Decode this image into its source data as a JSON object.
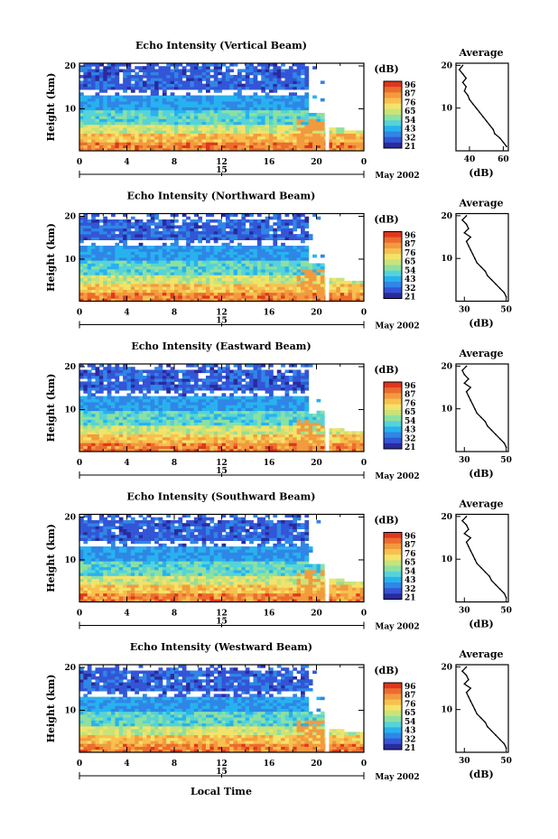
{
  "figure": {
    "xlabel": "Local Time",
    "date_label": "May 2002",
    "date_tick": "15",
    "colorbar_unit": "(dB)",
    "colorbar_ticks": [
      "96",
      "87",
      "76",
      "65",
      "54",
      "43",
      "32",
      "21"
    ],
    "avg_title": "Average",
    "avg_xlabel": "(dB)",
    "ylabel": "Height (km)",
    "colors": [
      "#2a2a9e",
      "#3355d6",
      "#2f86e6",
      "#27b2ef",
      "#55d3d8",
      "#8de0a0",
      "#c8e37a",
      "#f2e36a",
      "#f8c04e",
      "#f29a3e",
      "#ec6c2e",
      "#e0361e"
    ]
  },
  "chart_data": [
    {
      "type": "heatmap",
      "title": "Echo Intensity (Vertical Beam)",
      "xticks": [
        "0",
        "4",
        "8",
        "12",
        "16",
        "20",
        "0"
      ],
      "yticks": [
        "20",
        "10"
      ],
      "profile": {
        "type": "line",
        "title": "Average",
        "xticks": [
          "40",
          "60"
        ],
        "yticks": [
          "20",
          "10"
        ],
        "height_km": [
          1,
          2,
          3,
          4,
          5,
          6,
          7,
          8,
          9,
          10,
          11,
          12,
          13,
          14,
          15,
          16,
          17,
          18,
          19,
          20
        ],
        "db": [
          62,
          60,
          58,
          55,
          54,
          52,
          50,
          48,
          46,
          44,
          42,
          40,
          39,
          37,
          38,
          36,
          38,
          36,
          34,
          36
        ]
      }
    },
    {
      "type": "heatmap",
      "title": "Echo Intensity (Northward Beam)",
      "xticks": [
        "0",
        "4",
        "8",
        "12",
        "16",
        "20",
        "0"
      ],
      "yticks": [
        "20",
        "10"
      ],
      "profile": {
        "type": "line",
        "title": "Average",
        "xticks": [
          "30",
          "50"
        ],
        "yticks": [
          "20",
          "10"
        ],
        "height_km": [
          1,
          2,
          3,
          4,
          5,
          6,
          7,
          8,
          9,
          10,
          11,
          12,
          13,
          14,
          15,
          16,
          17,
          18,
          19,
          20
        ],
        "db": [
          50,
          49,
          47,
          45,
          43,
          41,
          40,
          38,
          36,
          35,
          34,
          33,
          32,
          31,
          33,
          30,
          32,
          31,
          29,
          31
        ]
      }
    },
    {
      "type": "heatmap",
      "title": "Echo Intensity (Eastward Beam)",
      "xticks": [
        "0",
        "4",
        "8",
        "12",
        "16",
        "20",
        "0"
      ],
      "yticks": [
        "20",
        "10"
      ],
      "profile": {
        "type": "line",
        "title": "Average",
        "xticks": [
          "30",
          "50"
        ],
        "yticks": [
          "20",
          "10"
        ],
        "height_km": [
          1,
          2,
          3,
          4,
          5,
          6,
          7,
          8,
          9,
          10,
          11,
          12,
          13,
          14,
          15,
          16,
          17,
          18,
          19,
          20
        ],
        "db": [
          50,
          49,
          47,
          45,
          43,
          41,
          40,
          38,
          36,
          35,
          34,
          33,
          32,
          31,
          33,
          30,
          32,
          30,
          29,
          31
        ]
      }
    },
    {
      "type": "heatmap",
      "title": "Echo Intensity (Southward Beam)",
      "xticks": [
        "0",
        "4",
        "8",
        "12",
        "16",
        "20",
        "0"
      ],
      "yticks": [
        "20",
        "10"
      ],
      "profile": {
        "type": "line",
        "title": "Average",
        "xticks": [
          "30",
          "50"
        ],
        "yticks": [
          "20",
          "10"
        ],
        "height_km": [
          1,
          2,
          3,
          4,
          5,
          6,
          7,
          8,
          9,
          10,
          11,
          12,
          13,
          14,
          15,
          16,
          17,
          18,
          19,
          20
        ],
        "db": [
          50,
          49,
          47,
          45,
          43,
          42,
          40,
          38,
          36,
          35,
          34,
          33,
          32,
          31,
          33,
          30,
          32,
          31,
          29,
          31
        ]
      }
    },
    {
      "type": "heatmap",
      "title": "Echo Intensity (Westward Beam)",
      "xticks": [
        "0",
        "4",
        "8",
        "12",
        "16",
        "20",
        "0"
      ],
      "yticks": [
        "20",
        "10"
      ],
      "profile": {
        "type": "line",
        "title": "Average",
        "xticks": [
          "30",
          "50"
        ],
        "yticks": [
          "20",
          "10"
        ],
        "height_km": [
          1,
          2,
          3,
          4,
          5,
          6,
          7,
          8,
          9,
          10,
          11,
          12,
          13,
          14,
          15,
          16,
          17,
          18,
          19,
          20
        ],
        "db": [
          50,
          49,
          47,
          45,
          43,
          41,
          40,
          38,
          36,
          35,
          34,
          33,
          32,
          31,
          33,
          30,
          32,
          31,
          29,
          31
        ]
      }
    }
  ]
}
